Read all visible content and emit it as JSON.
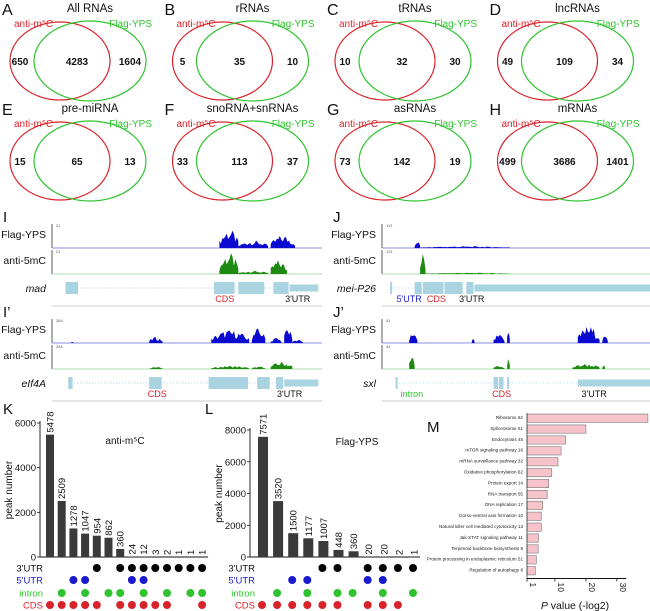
{
  "venns": [
    {
      "letter": "A",
      "title": "All RNAs",
      "left": "650",
      "both": "4283",
      "right": "1604"
    },
    {
      "letter": "B",
      "title": "rRNAs",
      "left": "5",
      "both": "35",
      "right": "10"
    },
    {
      "letter": "C",
      "title": "tRNAs",
      "left": "10",
      "both": "32",
      "right": "30"
    },
    {
      "letter": "D",
      "title": "lncRNAs",
      "left": "49",
      "both": "109",
      "right": "34"
    },
    {
      "letter": "E",
      "title": "pre-miRNA",
      "left": "15",
      "both": "65",
      "right": "13"
    },
    {
      "letter": "F",
      "title": "snoRNA+snRNAs",
      "left": "33",
      "both": "113",
      "right": "37"
    },
    {
      "letter": "G",
      "title": "asRNAs",
      "left": "73",
      "both": "142",
      "right": "19"
    },
    {
      "letter": "H",
      "title": "mRNAs",
      "left": "499",
      "both": "3686",
      "right": "1401"
    }
  ],
  "venn_labels": {
    "red": "anti-m⁵C",
    "green": "Flag-YPS"
  },
  "colors": {
    "red": "#d9232a",
    "green": "#2fc42f",
    "blue": "#1a1acc",
    "track_blue": "#0a0ad0",
    "track_green": "#1e8a12",
    "gene": "#a9d3e0",
    "bar": "#3a3a3a",
    "pink": "#f6c3ca"
  },
  "tracks": [
    {
      "letter": "I",
      "gene": "mad",
      "track1": "Flag-YPS",
      "track2": "anti-5mC",
      "scale1": "21",
      "scale2": "21",
      "annotations": [
        {
          "text": "CDS",
          "color": "red"
        },
        {
          "text": "3'UTR",
          "color": "black"
        }
      ]
    },
    {
      "letter": "I’",
      "gene": "eIf4A",
      "track1": "Flag-YPS",
      "track2": "anti-5mC",
      "scale1": "284",
      "scale2": "284",
      "annotations": [
        {
          "text": "CDS",
          "color": "red"
        },
        {
          "text": "3'UTR",
          "color": "black"
        }
      ]
    },
    {
      "letter": "J",
      "gene": "mei-P26",
      "track1": "Flag-YPS",
      "track2": "anti-5mC",
      "scale1": "113",
      "scale2": "113",
      "annotations": [
        {
          "text": "5'UTR",
          "color": "blue"
        },
        {
          "text": "CDS",
          "color": "red"
        },
        {
          "text": "3'UTR",
          "color": "black"
        }
      ]
    },
    {
      "letter": "J’",
      "gene": "sxl",
      "track1": "Flag-YPS",
      "track2": "anti-5mC",
      "scale1": "41",
      "scale2": "41",
      "annotations": [
        {
          "text": "intron",
          "color": "green"
        },
        {
          "text": "CDS",
          "color": "red"
        },
        {
          "text": "3'UTR",
          "color": "black"
        }
      ]
    }
  ],
  "chart_data": [
    {
      "panel": "K",
      "type": "bar",
      "title": "anti-m⁵C",
      "ylabel": "peak number",
      "ylim": [
        0,
        6000
      ],
      "yticks": [
        "0",
        "2000",
        "4000",
        "6000"
      ],
      "values": [
        5478,
        2509,
        1278,
        1047,
        954,
        862,
        360,
        24,
        12,
        3,
        2,
        1,
        1,
        1
      ],
      "rows": [
        "3'UTR",
        "5'UTR",
        "intron",
        "CDS"
      ],
      "membership": {
        "3'UTR": [
          0,
          0,
          0,
          0,
          1,
          0,
          1,
          1,
          1,
          1,
          1,
          1,
          1,
          1
        ],
        "5'UTR": [
          0,
          0,
          1,
          1,
          0,
          0,
          0,
          1,
          1,
          0,
          0,
          0,
          0,
          0
        ],
        "intron": [
          0,
          1,
          0,
          1,
          0,
          1,
          1,
          0,
          1,
          0,
          1,
          0,
          1,
          1
        ],
        "CDS": [
          1,
          1,
          1,
          1,
          1,
          0,
          1,
          1,
          1,
          1,
          1,
          0,
          0,
          1
        ]
      }
    },
    {
      "panel": "L",
      "type": "bar",
      "title": "Flag-YPS",
      "ylabel": "peak number",
      "ylim": [
        0,
        8000
      ],
      "yticks": [
        "0",
        "2000",
        "4000",
        "6000",
        "8000"
      ],
      "values": [
        7571,
        3520,
        1500,
        1177,
        1007,
        448,
        360,
        20,
        20,
        2,
        1
      ],
      "rows": [
        "3'UTR",
        "5'UTR",
        "intron",
        "CDS"
      ],
      "membership": {
        "3'UTR": [
          0,
          0,
          0,
          0,
          1,
          1,
          0,
          1,
          1,
          1,
          1
        ],
        "5'UTR": [
          0,
          0,
          1,
          1,
          0,
          0,
          0,
          1,
          1,
          0,
          0
        ],
        "intron": [
          0,
          1,
          0,
          1,
          0,
          1,
          1,
          0,
          1,
          0,
          1
        ],
        "CDS": [
          1,
          1,
          1,
          1,
          1,
          1,
          0,
          1,
          1,
          1,
          0
        ]
      }
    },
    {
      "panel": "M",
      "type": "bar",
      "orientation": "horizontal",
      "xlabel_p": "P",
      "xlabel_rest": " value (-log2)",
      "xlim": [
        1,
        40
      ],
      "xticks": [
        "1",
        "10",
        "20",
        "30"
      ],
      "categories": [
        "Ribosome 62",
        "Spliceosome 61",
        "Endocytosis 45",
        "mTOR signaling pathway 16",
        "mRNA surveillance pathway 32",
        "Oxidative phosphorylation 62",
        "Protein export 14",
        "RNA transport 55",
        "DNA replication 17",
        "Dorso-ventral axis formation 10",
        "Natural killer cell mediated cytotoxicity 13",
        "Jak-STAT signaling pathway 11",
        "Terpenoid backbone biosynthesis 8",
        "Protein processing in endoplasmic reticulum 51",
        "Regulation of autophagy 8"
      ],
      "values": [
        40,
        20,
        13.5,
        12,
        11,
        9,
        8,
        7.5,
        6,
        5.6,
        5.6,
        4.7,
        4.6,
        4,
        3.7
      ]
    }
  ]
}
